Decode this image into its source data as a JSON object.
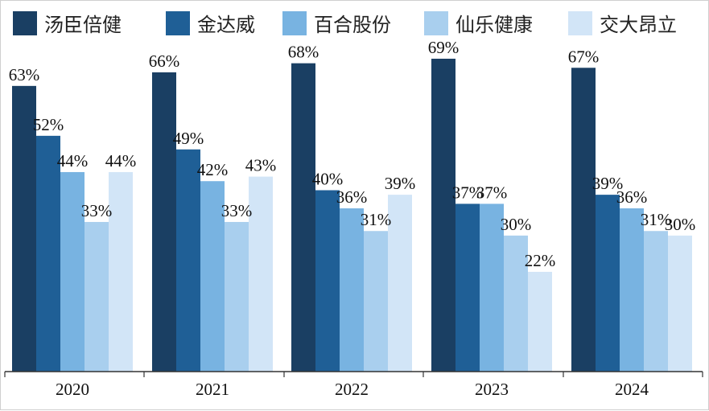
{
  "chart_data": {
    "type": "bar",
    "title": "",
    "xlabel": "",
    "ylabel": "",
    "ylim": [
      0,
      73
    ],
    "grid": false,
    "legend_position": "top",
    "categories": [
      "2020",
      "2021",
      "2022",
      "2023",
      "2024"
    ],
    "series": [
      {
        "name": "汤臣倍健",
        "values": [
          63,
          66,
          68,
          69,
          67
        ],
        "labels": [
          "63%",
          "66%",
          "68%",
          "69%",
          "67%"
        ],
        "color": "#1a3f63"
      },
      {
        "name": "金达威",
        "values": [
          52,
          49,
          40,
          37,
          39
        ],
        "labels": [
          "52%",
          "49%",
          "40%",
          "37%",
          "39%"
        ],
        "color": "#1f5f96"
      },
      {
        "name": "百合股份",
        "values": [
          44,
          42,
          36,
          37,
          36
        ],
        "labels": [
          "44%",
          "42%",
          "36%",
          "37%",
          "36%"
        ],
        "color": "#78b3e1"
      },
      {
        "name": "仙乐健康",
        "values": [
          33,
          33,
          31,
          30,
          31
        ],
        "labels": [
          "33%",
          "33%",
          "31%",
          "30%",
          "31%"
        ],
        "color": "#a9cfee"
      },
      {
        "name": "交大昂立",
        "values": [
          44,
          43,
          39,
          22,
          30
        ],
        "labels": [
          "44%",
          "43%",
          "39%",
          "22%",
          "30%"
        ],
        "color": "#d2e5f7"
      }
    ]
  }
}
